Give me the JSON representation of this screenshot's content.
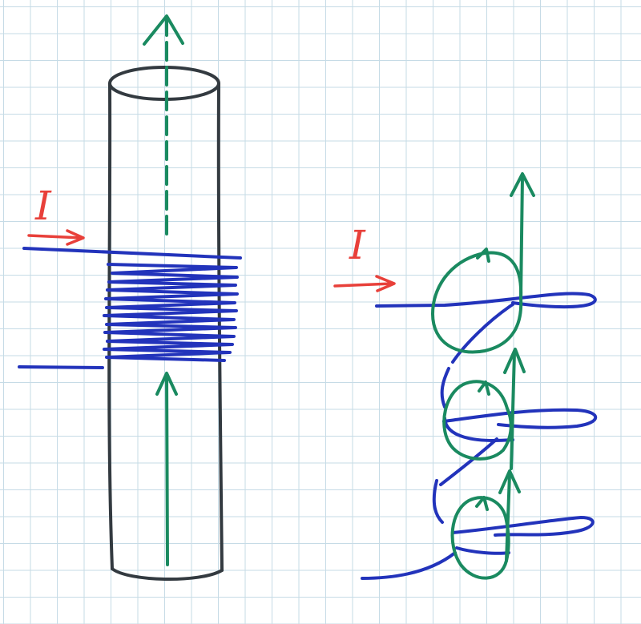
{
  "labels": {
    "current_left": "I",
    "current_right": "I"
  },
  "colors": {
    "cylinder": "#333a40",
    "wire": "#2233bb",
    "field": "#1a8a60",
    "current": "#e8403a",
    "grid": "#c6dbe6"
  }
}
